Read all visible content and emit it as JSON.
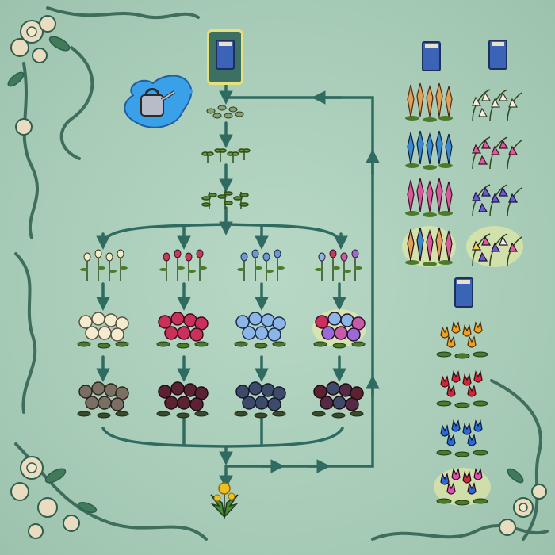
{
  "diagram": {
    "kind": "flower-breeding-guide",
    "icons": {
      "top_seed_packet": "rose-seed-packet-icon",
      "watering_can": "watering-can-icon",
      "seeds": "seed-pile-icon",
      "dandelion": "dandelion-icon"
    },
    "colors": {
      "background": "#a9cdb9",
      "arrow": "#2f6b60",
      "packet_frame": "#e8e07a",
      "packet_blue": "#3b63b8",
      "water": "#3aa0e8",
      "leaf": "#2f6a34"
    },
    "rose_columns": [
      {
        "name": "white",
        "bud": "#f3ecc8",
        "bloom": "#f5ecd0",
        "wilted": "#7b6f63"
      },
      {
        "name": "red",
        "bud": "#c23a5c",
        "bloom": "#c9305a",
        "wilted": "#5b2234"
      },
      {
        "name": "blue",
        "bud": "#6a9ad0",
        "bloom": "#8ab6e8",
        "wilted": "#3d4a6a"
      },
      {
        "name": "mixed",
        "bud": "#c85aa8",
        "bloom": "#9a6ad8",
        "wilted": "#552a46",
        "sparkle": true
      }
    ],
    "side_flowers": {
      "lupine_packet": "lupine-seed-packet-icon",
      "bell_packet": "bellflower-seed-packet-icon",
      "tulip_packet": "tulip-seed-packet-icon",
      "lupines": [
        {
          "name": "orange-lupine",
          "color": "#e0a05a"
        },
        {
          "name": "blue-lupine",
          "color": "#3a8ad0"
        },
        {
          "name": "pink-lupine",
          "color": "#d85a9a"
        },
        {
          "name": "mixed-lupine",
          "color": "#d89a4a",
          "sparkle": true
        }
      ],
      "bellflowers": [
        {
          "name": "white-bellflower",
          "color": "#f2f0e0"
        },
        {
          "name": "pink-bellflower",
          "color": "#e05a9a"
        },
        {
          "name": "purple-bellflower",
          "color": "#6a5ad0"
        },
        {
          "name": "mixed-bellflower",
          "color": "#c070d0",
          "sparkle": true
        }
      ],
      "tulips": [
        {
          "name": "orange-tulip",
          "color": "#f0a020"
        },
        {
          "name": "red-tulip",
          "color": "#d02838"
        },
        {
          "name": "blue-tulip",
          "color": "#2a6ad8"
        },
        {
          "name": "mixed-tulip",
          "color": "#e050b0",
          "sparkle": true
        }
      ]
    }
  }
}
